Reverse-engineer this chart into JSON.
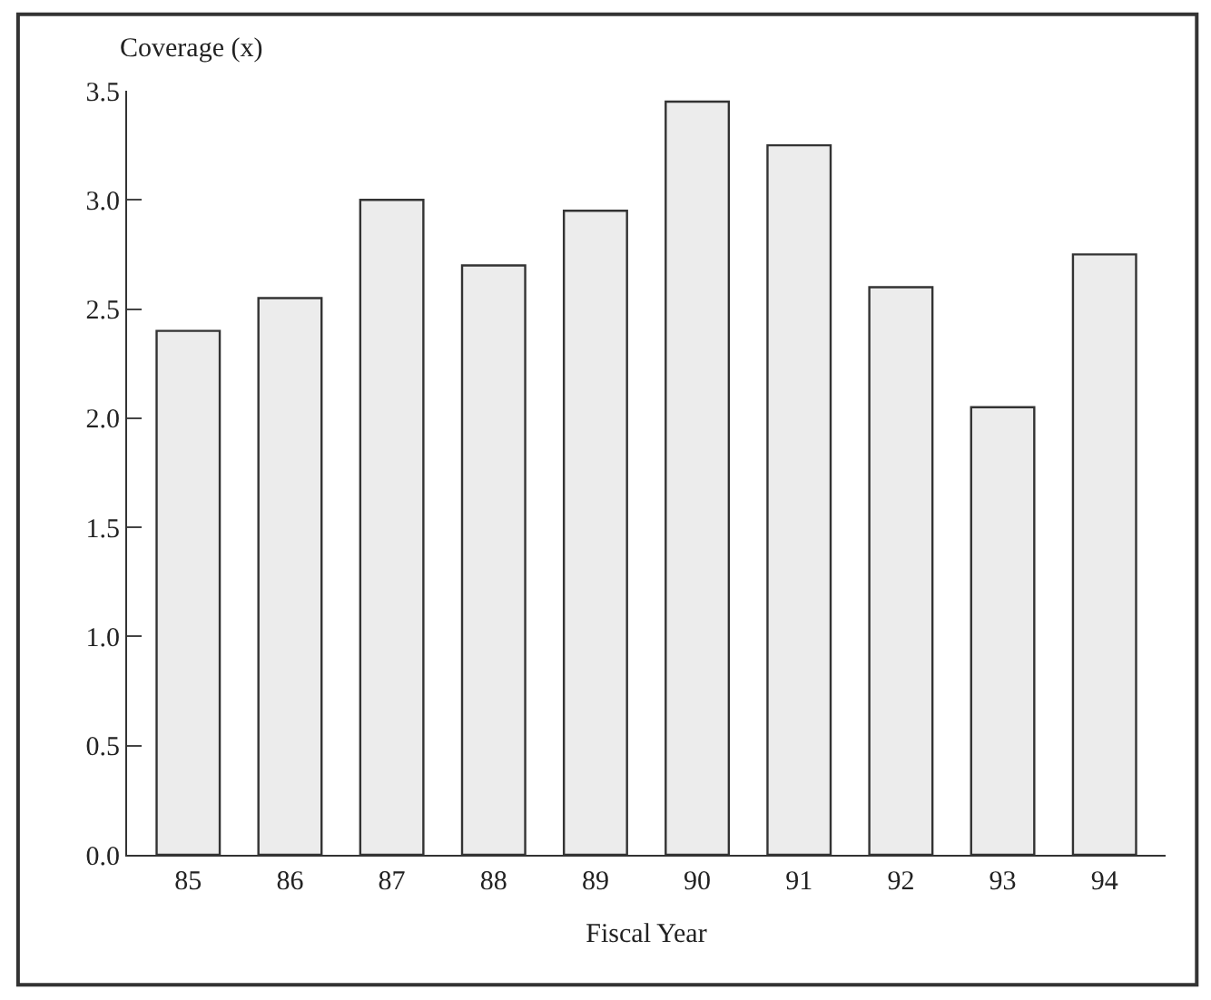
{
  "chart_data": {
    "type": "bar",
    "ylabel": "Coverage (x)",
    "xlabel": "Fiscal Year",
    "categories": [
      "85",
      "86",
      "87",
      "88",
      "89",
      "90",
      "91",
      "92",
      "93",
      "94"
    ],
    "values": [
      2.4,
      2.55,
      3.0,
      2.7,
      2.95,
      3.45,
      3.25,
      2.6,
      2.05,
      2.75
    ],
    "color": "#ececec",
    "ylim": [
      0,
      3.5
    ],
    "yticks": [
      {
        "value": 0,
        "label": "0.0"
      },
      0.5,
      {
        "value": 1,
        "label": "1.0"
      },
      1.5,
      {
        "value": 2,
        "label": "2.0"
      },
      2.5,
      {
        "value": 3,
        "label": "3.0"
      },
      3.5
    ]
  }
}
